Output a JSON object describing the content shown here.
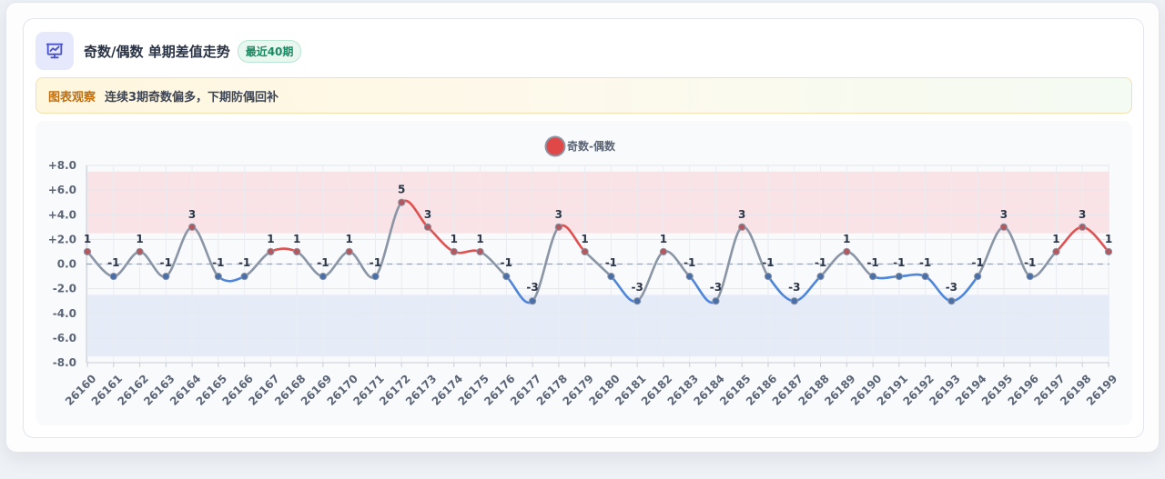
{
  "header": {
    "title": "奇数/偶数 单期差值走势",
    "badge": "最近40期",
    "icon": "presentation-chart-icon"
  },
  "observation": {
    "label": "图表观察",
    "text": "连续3期奇数偏多，下期防偶回补"
  },
  "colors": {
    "positive": "#e05252",
    "negative": "#4f86d9",
    "neutral": "#8a95a5",
    "legend_marker": "#e04848",
    "band_high": "#f9e3e6",
    "band_low": "#e6ebf8"
  },
  "chart_data": {
    "type": "line",
    "title": "",
    "xlabel": "",
    "ylabel": "",
    "legend": {
      "position": "top-center"
    },
    "grid": true,
    "ylim": [
      -8,
      8
    ],
    "yticks": [
      "+8.0",
      "+6.0",
      "+4.0",
      "+2.0",
      "0.0",
      "-2.0",
      "-4.0",
      "-6.0",
      "-8.0"
    ],
    "bands": [
      {
        "from": 2.5,
        "to": 7.5,
        "color": "#f9e3e6"
      },
      {
        "from": -7.5,
        "to": -2.5,
        "color": "#e6ebf8"
      }
    ],
    "baseline": 0,
    "categories": [
      "26160",
      "26161",
      "26162",
      "26163",
      "26164",
      "26165",
      "26166",
      "26167",
      "26168",
      "26169",
      "26170",
      "26171",
      "26172",
      "26173",
      "26174",
      "26175",
      "26176",
      "26177",
      "26178",
      "26179",
      "26180",
      "26181",
      "26182",
      "26183",
      "26184",
      "26185",
      "26186",
      "26187",
      "26188",
      "26189",
      "26190",
      "26191",
      "26192",
      "26193",
      "26194",
      "26195",
      "26196",
      "26197",
      "26198",
      "26199"
    ],
    "series": [
      {
        "name": "奇数-偶数",
        "values": [
          1,
          -1,
          1,
          -1,
          3,
          -1,
          -1,
          1,
          1,
          -1,
          1,
          -1,
          5,
          3,
          1,
          1,
          -1,
          -3,
          3,
          1,
          -1,
          -3,
          1,
          -1,
          -3,
          3,
          -1,
          -3,
          -1,
          1,
          -1,
          -1,
          -1,
          -3,
          -1,
          3,
          -1,
          1,
          3,
          1
        ]
      }
    ]
  }
}
